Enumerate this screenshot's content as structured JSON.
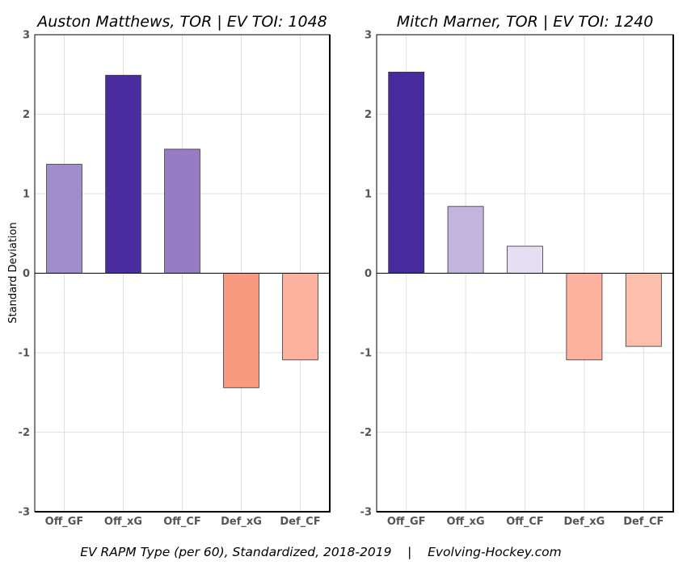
{
  "caption": "EV RAPM Type (per 60), Standardized, 2018-2019    |    Evolving-Hockey.com",
  "ylabel": "Standard Deviation",
  "chart_data": [
    {
      "type": "bar",
      "title": "Auston Matthews, TOR  |  EV TOI: 1048",
      "categories": [
        "Off_GF",
        "Off_xG",
        "Off_CF",
        "Def_xG",
        "Def_CF"
      ],
      "values": [
        1.37,
        2.49,
        1.56,
        -1.44,
        -1.09
      ],
      "colors": [
        "#a38ccc",
        "#4b2d9f",
        "#967cc4",
        "#f89a80",
        "#fcb29f"
      ],
      "ylim": [
        -3,
        3
      ],
      "yticks": [
        "3",
        "2",
        "1",
        "0",
        "-1",
        "-2",
        "-3"
      ],
      "ytick_values": [
        3,
        2,
        1,
        0,
        -1,
        -2,
        -3
      ],
      "grid": true
    },
    {
      "type": "bar",
      "title": "Mitch Marner, TOR  |  EV TOI: 1240",
      "categories": [
        "Off_GF",
        "Off_xG",
        "Off_CF",
        "Def_xG",
        "Def_CF"
      ],
      "values": [
        2.53,
        0.84,
        0.34,
        -1.09,
        -0.92
      ],
      "colors": [
        "#472a9d",
        "#c3b4de",
        "#e6def2",
        "#fcb29f",
        "#fdbfac"
      ],
      "ylim": [
        -3,
        3
      ],
      "yticks": [
        "3",
        "2",
        "1",
        "0",
        "-1",
        "-2",
        "-3"
      ],
      "ytick_values": [
        3,
        2,
        1,
        0,
        -1,
        -2,
        -3
      ],
      "grid": true
    }
  ]
}
